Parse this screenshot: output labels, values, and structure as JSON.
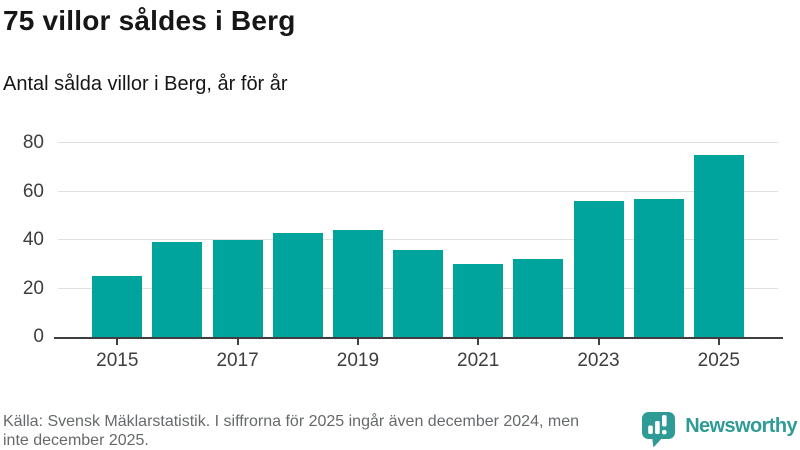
{
  "header": {
    "title": "75 villor såldes i Berg",
    "subtitle": "Antal sålda villor i Berg, år för år"
  },
  "footer": {
    "source_note": "Källa: Svensk Mäklarstatistik. I siffrorna för 2025 ingår även december 2024, men\ninte december 2025.",
    "logo_text": "Newsworthy"
  },
  "colors": {
    "bar": "#00a49c",
    "logo": "#2f9b96",
    "grid": "#e0e0e0",
    "axis": "#3f3f3f",
    "tick_label": "#3e3e3e",
    "title_text": "#161616",
    "source_text": "#66696b"
  },
  "chart_data": {
    "type": "bar",
    "title": "75 villor såldes i Berg",
    "subtitle": "Antal sålda villor i Berg, år för år",
    "categories": [
      2015,
      2016,
      2017,
      2018,
      2019,
      2020,
      2021,
      2022,
      2023,
      2024,
      2025
    ],
    "values": [
      25,
      39,
      40,
      43,
      44,
      36,
      30,
      32,
      56,
      57,
      75
    ],
    "xlabel": "",
    "ylabel": "",
    "ylim": [
      0,
      80
    ],
    "yticks": [
      0,
      20,
      40,
      60,
      80
    ],
    "xtick_labels": [
      "2015",
      "2017",
      "2019",
      "2021",
      "2023",
      "2025"
    ],
    "grid": "horizontal",
    "legend": "none",
    "bar_color": "#00a49c",
    "source": "Källa: Svensk Mäklarstatistik. I siffrorna för 2025 ingår även december 2024, men inte december 2025."
  }
}
